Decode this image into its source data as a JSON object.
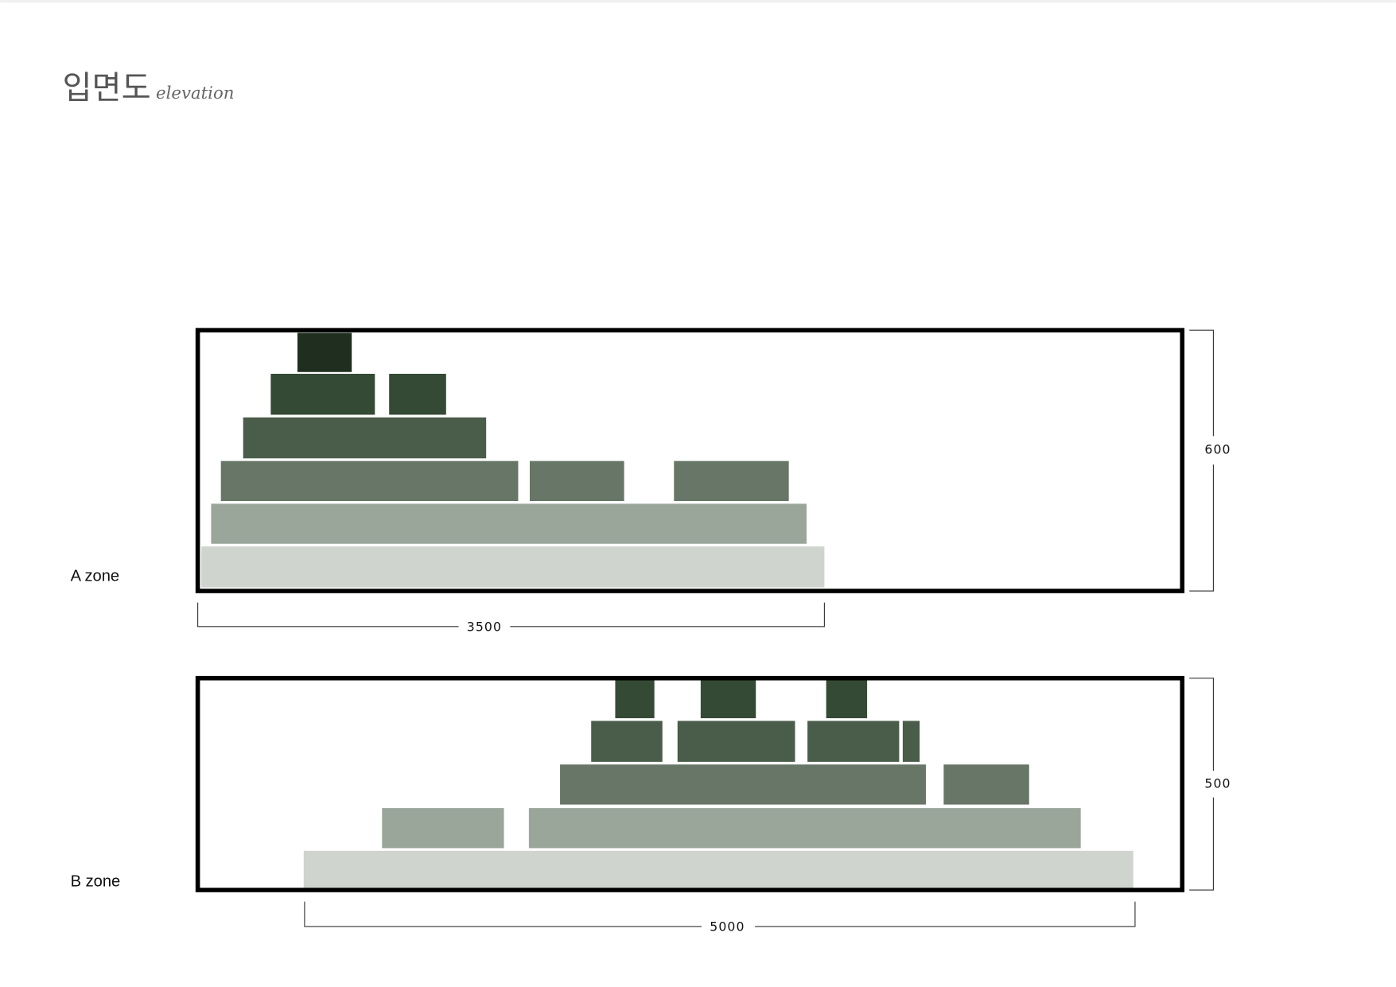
{
  "header": {
    "title": "입면도",
    "subtitle": "elevation"
  },
  "zones": [
    {
      "label": "A zone",
      "width": 3500,
      "height": 600
    },
    {
      "label": "B zone",
      "width": 5000,
      "height": 500
    }
  ]
}
